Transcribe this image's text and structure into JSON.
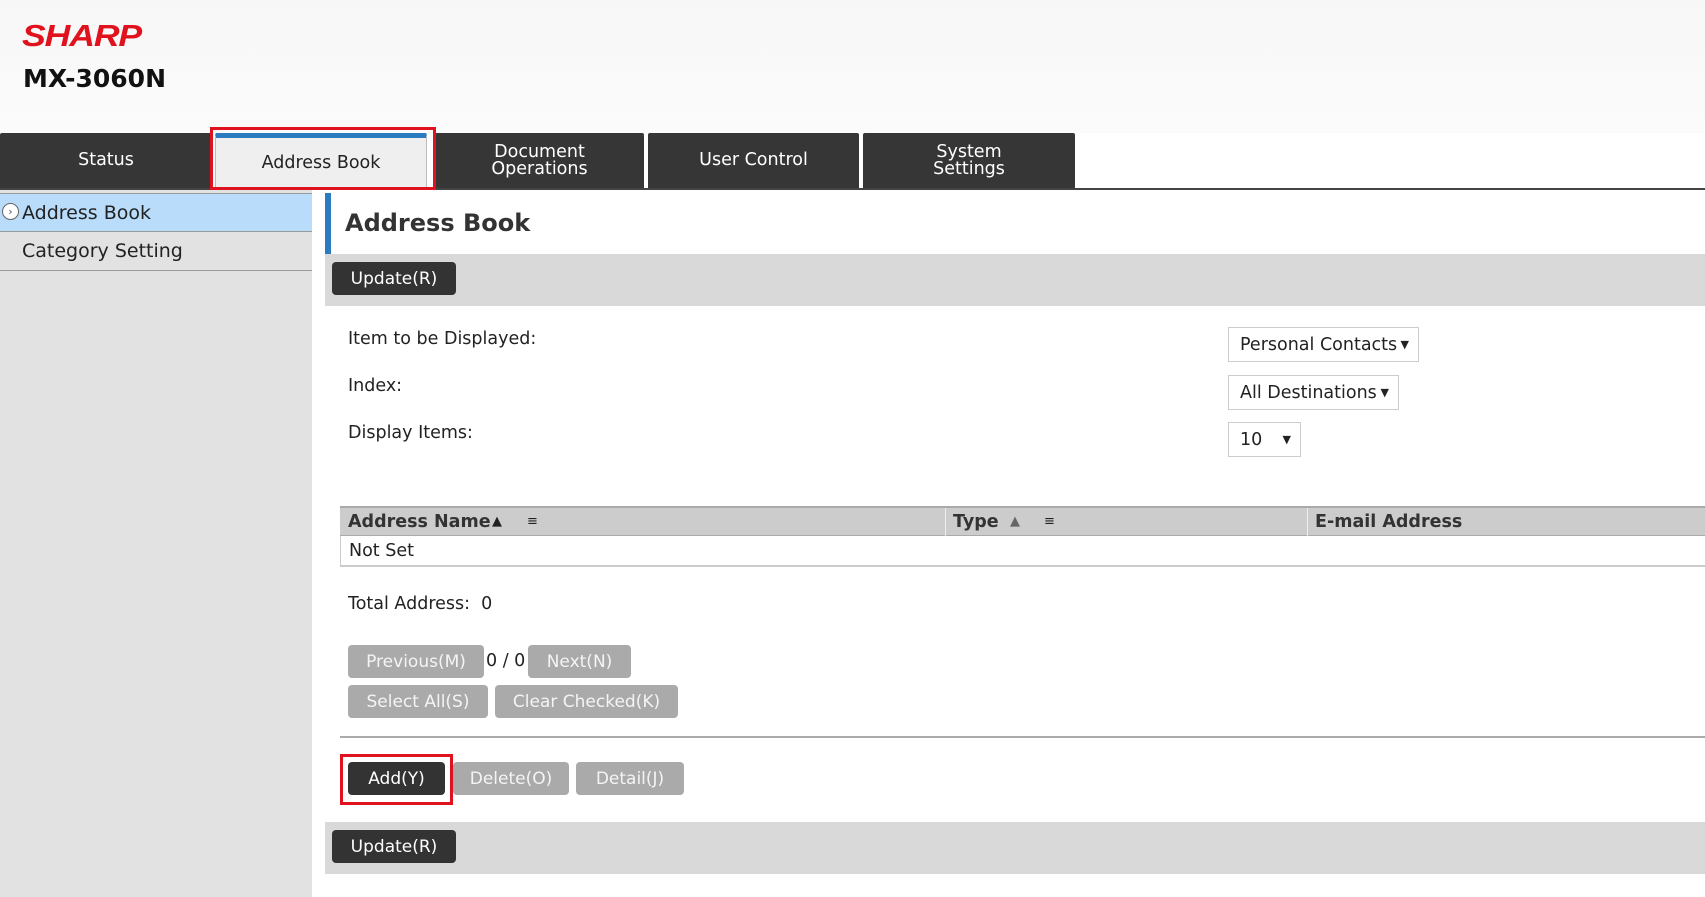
{
  "brand": "SHARP",
  "model": "MX-3060N",
  "tabs": [
    {
      "label": "Status"
    },
    {
      "label": "Address Book",
      "active": true
    },
    {
      "label": "Document Operations"
    },
    {
      "label": "User Control"
    },
    {
      "label": "System Settings"
    }
  ],
  "sidebar": {
    "items": [
      {
        "label": "Address Book",
        "active": true
      },
      {
        "label": "Category Setting"
      }
    ]
  },
  "page_title": "Address Book",
  "update_label": "Update(R)",
  "form": {
    "item_label": "Item to be Displayed:",
    "item_value": "Personal Contacts",
    "index_label": "Index:",
    "index_value": "All Destinations",
    "display_label": "Display Items:",
    "display_value": "10"
  },
  "table": {
    "columns": [
      "Address Name",
      "Type",
      "E-mail Address"
    ],
    "rows": [
      [
        "Not Set",
        "",
        ""
      ]
    ]
  },
  "total": {
    "label": "Total Address:",
    "value": "0"
  },
  "pager": {
    "previous": "Previous(M)",
    "page": "0 / 0",
    "next": "Next(N)"
  },
  "select_all": "Select All(S)",
  "clear_checked": "Clear Checked(K)",
  "actions": {
    "add": "Add(Y)",
    "delete": "Delete(O)",
    "detail": "Detail(J)"
  },
  "colors": {
    "brand": "#e0121d",
    "accent": "#2a7bc0",
    "highlight": "#e0121d"
  }
}
